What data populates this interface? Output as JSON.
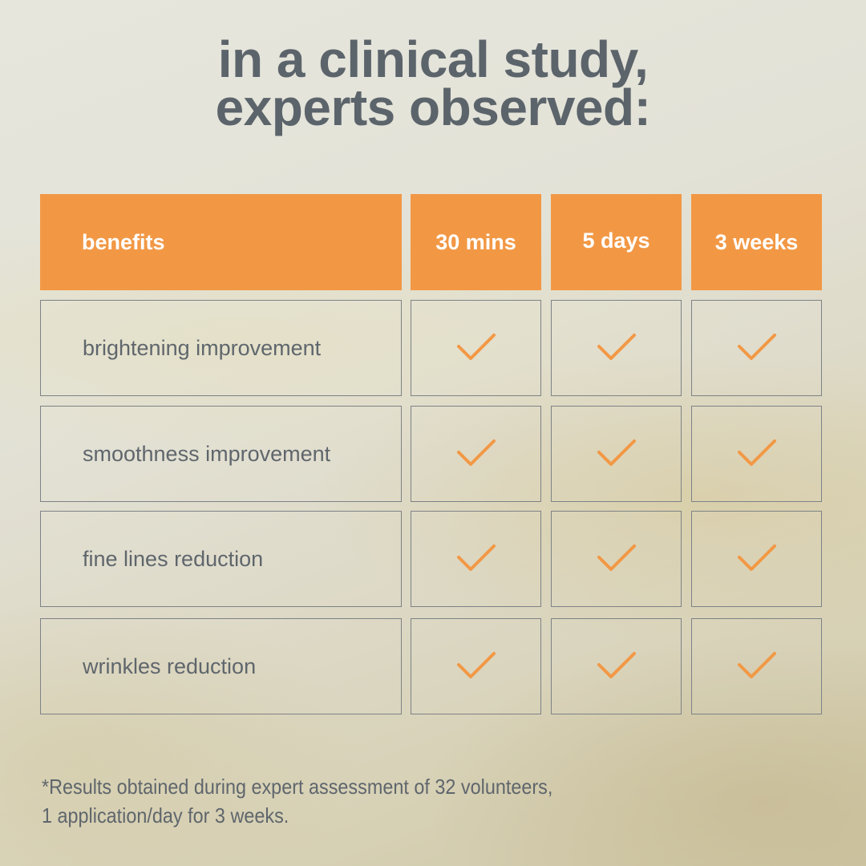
{
  "title": {
    "line1": "in a clinical study,",
    "line2": "experts observed:"
  },
  "table": {
    "header": {
      "benefits": "benefits",
      "col1": "30 mins",
      "col2": "5 days",
      "col3": "3 weeks"
    },
    "rows": [
      {
        "label": "brightening improvement",
        "checks": [
          true,
          true,
          true
        ]
      },
      {
        "label": "smoothness improvement",
        "checks": [
          true,
          true,
          true
        ]
      },
      {
        "label": "fine lines reduction",
        "checks": [
          true,
          true,
          true
        ]
      },
      {
        "label": "wrinkles reduction",
        "checks": [
          true,
          true,
          true
        ]
      }
    ],
    "check_icon": "checkmark-icon"
  },
  "footnote": {
    "line1": "*Results obtained during expert assessment of 32 volunteers,",
    "line2": "1 application/day for 3 weeks."
  },
  "colors": {
    "accent": "#f29845",
    "text": "#5c646b",
    "border": "#7d8286"
  }
}
